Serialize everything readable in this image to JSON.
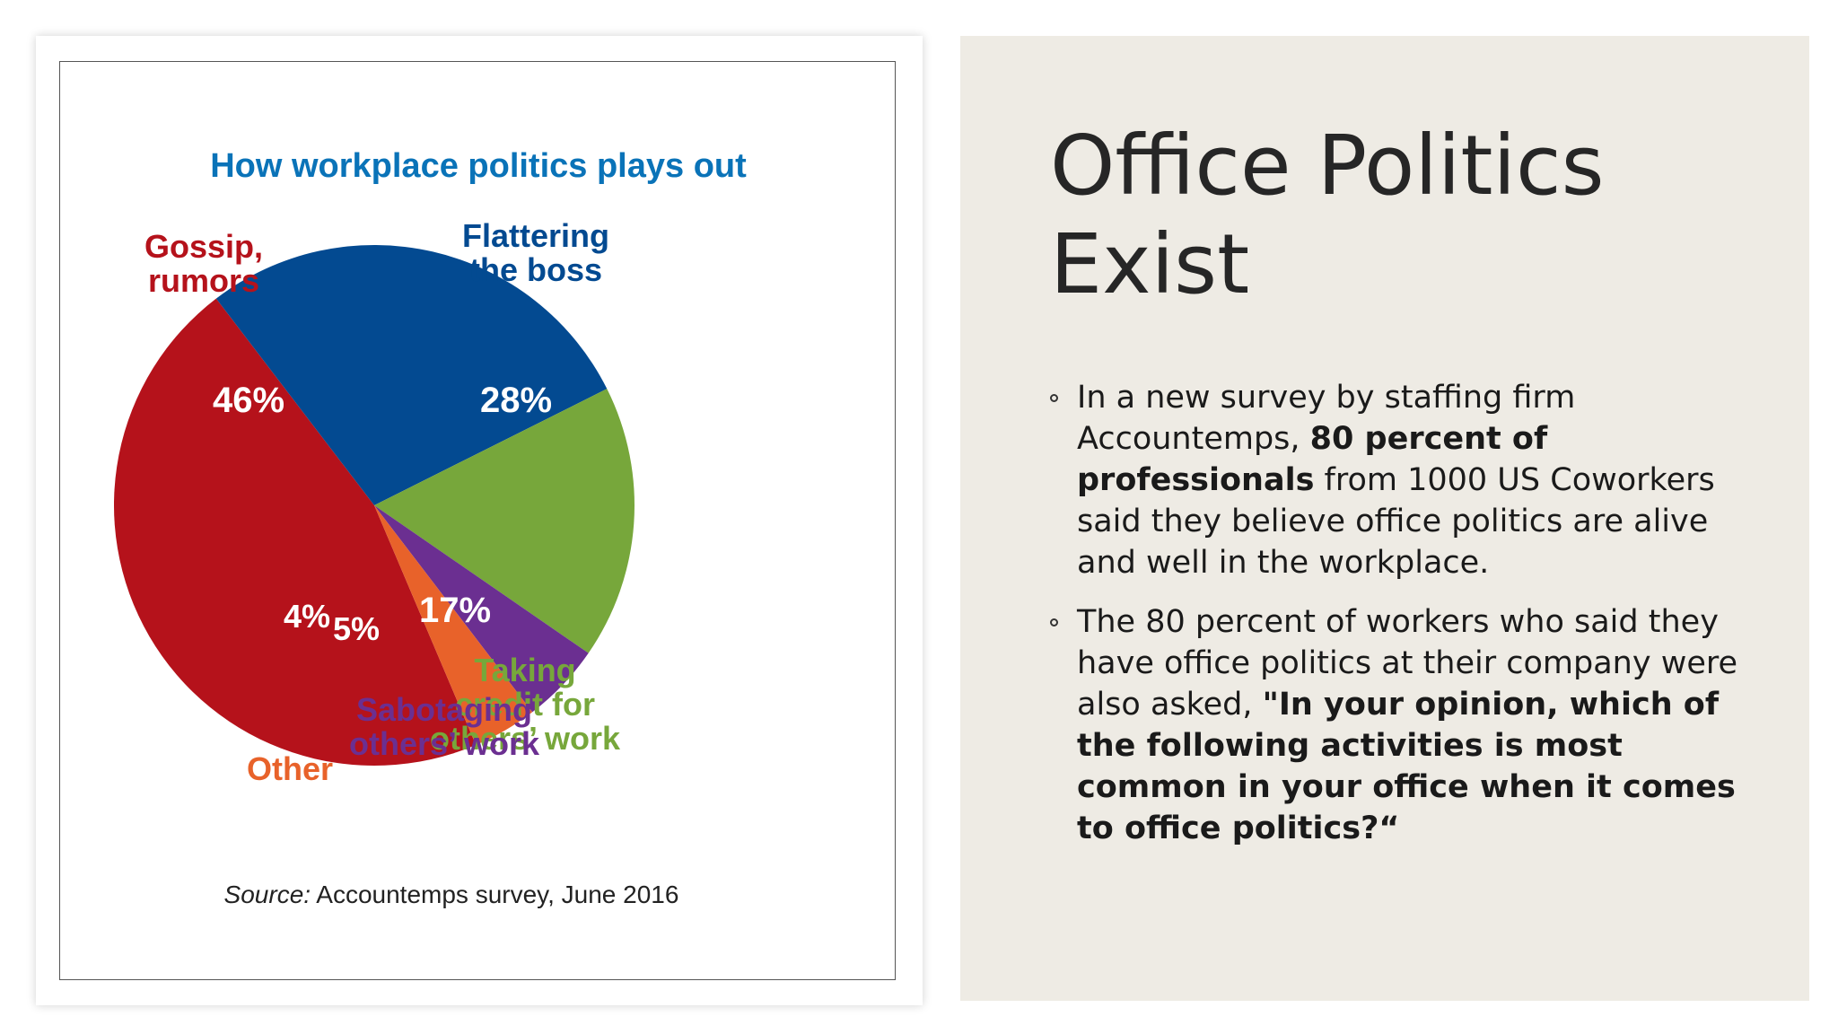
{
  "slide": {
    "title_line1": "Office Politics",
    "title_line2": "Exist",
    "bullets": [
      {
        "segments": [
          {
            "text": "In a new survey by staffing firm Accountemps, ",
            "bold": false
          },
          {
            "text": "80 percent of professionals",
            "bold": true
          },
          {
            "text": " from 1000 US Coworkers said they believe office politics are alive and well in the workplace.",
            "bold": false
          }
        ]
      },
      {
        "segments": [
          {
            "text": "The 80 percent of workers who said they have office politics at their company were also asked, ",
            "bold": false
          },
          {
            "text": "\"In your opinion, which of the following activities is most common in your office when it comes to office politics?“",
            "bold": true
          }
        ]
      }
    ]
  },
  "chart_data": {
    "type": "pie",
    "title": "How workplace politics plays out",
    "source_label": "Source:",
    "source_text": " Accountemps survey, June 2016",
    "slices": [
      {
        "key": "gossip",
        "label_lines": [
          "Gossip,",
          "rumors"
        ],
        "value": 46,
        "value_label": "46%",
        "color": "#b5121b",
        "label_color": "#b5121b"
      },
      {
        "key": "flattering",
        "label_lines": [
          "Flattering",
          "the boss"
        ],
        "value": 28,
        "value_label": "28%",
        "color": "#034a91",
        "label_color": "#034a91"
      },
      {
        "key": "taking-credit",
        "label_lines": [
          "Taking",
          "credit for",
          "others’ work"
        ],
        "value": 17,
        "value_label": "17%",
        "color": "#77a73b",
        "label_color": "#77a73b"
      },
      {
        "key": "sabotaging",
        "label_lines": [
          "Sabotaging",
          "others’ work"
        ],
        "value": 5,
        "value_label": "5%",
        "color": "#6b2f91",
        "label_color": "#6b2f91"
      },
      {
        "key": "other",
        "label_lines": [
          "Other"
        ],
        "value": 4,
        "value_label": "4%",
        "color": "#e8622a",
        "label_color": "#e8622a"
      }
    ],
    "title_color": "#0a73b8"
  }
}
